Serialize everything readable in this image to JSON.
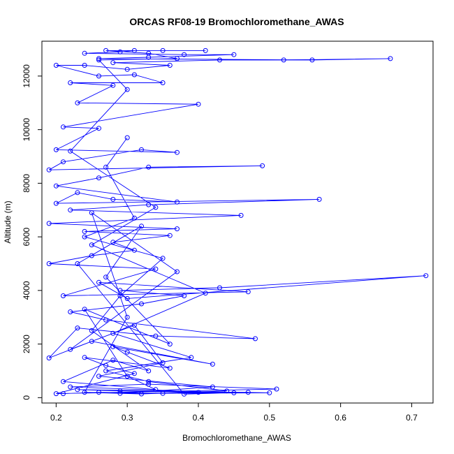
{
  "chart_data": {
    "type": "line",
    "title": "ORCAS RF08-19 Bromochloromethane_AWAS",
    "xlabel": "Bromochloromethane_AWAS",
    "ylabel": "Altitude (m)",
    "xlim": [
      0.18,
      0.73
    ],
    "ylim": [
      -200,
      13300
    ],
    "xticks": [
      0.2,
      0.3,
      0.4,
      0.5,
      0.6,
      0.7
    ],
    "xtick_labels": [
      "0.2",
      "0.3",
      "0.4",
      "0.5",
      "0.6",
      "0.7"
    ],
    "yticks": [
      0,
      2000,
      4000,
      6000,
      8000,
      10000,
      12000
    ],
    "ytick_labels": [
      "0",
      "2000",
      "4000",
      "6000",
      "8000",
      "10000",
      "12000"
    ],
    "grid": false,
    "series": [
      {
        "color": "#0000ff",
        "marker": "open-circle",
        "points": [
          {
            "x": 0.21,
            "y": 150
          },
          {
            "x": 0.26,
            "y": 200
          },
          {
            "x": 0.35,
            "y": 160
          },
          {
            "x": 0.5,
            "y": 180
          },
          {
            "x": 0.23,
            "y": 300
          },
          {
            "x": 0.29,
            "y": 250
          },
          {
            "x": 0.4,
            "y": 200
          },
          {
            "x": 0.45,
            "y": 180
          },
          {
            "x": 0.22,
            "y": 400
          },
          {
            "x": 0.33,
            "y": 500
          },
          {
            "x": 0.51,
            "y": 320
          },
          {
            "x": 0.2,
            "y": 150
          },
          {
            "x": 0.31,
            "y": 900
          },
          {
            "x": 0.27,
            "y": 1200
          },
          {
            "x": 0.24,
            "y": 1500
          },
          {
            "x": 0.36,
            "y": 1100
          },
          {
            "x": 0.3,
            "y": 1700
          },
          {
            "x": 0.28,
            "y": 1900
          },
          {
            "x": 0.42,
            "y": 1250
          },
          {
            "x": 0.25,
            "y": 2100
          },
          {
            "x": 0.19,
            "y": 1480
          },
          {
            "x": 0.23,
            "y": 2600
          },
          {
            "x": 0.34,
            "y": 2300
          },
          {
            "x": 0.48,
            "y": 2200
          },
          {
            "x": 0.27,
            "y": 2900
          },
          {
            "x": 0.22,
            "y": 3200
          },
          {
            "x": 0.32,
            "y": 3500
          },
          {
            "x": 0.38,
            "y": 3800
          },
          {
            "x": 0.29,
            "y": 4000
          },
          {
            "x": 0.43,
            "y": 4100
          },
          {
            "x": 0.72,
            "y": 4550
          },
          {
            "x": 0.3,
            "y": 3700
          },
          {
            "x": 0.26,
            "y": 4300
          },
          {
            "x": 0.47,
            "y": 3950
          },
          {
            "x": 0.21,
            "y": 3800
          },
          {
            "x": 0.34,
            "y": 4800
          },
          {
            "x": 0.19,
            "y": 5000
          },
          {
            "x": 0.25,
            "y": 5300
          },
          {
            "x": 0.31,
            "y": 5500
          },
          {
            "x": 0.28,
            "y": 5800
          },
          {
            "x": 0.36,
            "y": 6050
          },
          {
            "x": 0.24,
            "y": 6200
          },
          {
            "x": 0.37,
            "y": 6300
          },
          {
            "x": 0.19,
            "y": 6500
          },
          {
            "x": 0.46,
            "y": 6800
          },
          {
            "x": 0.22,
            "y": 7000
          },
          {
            "x": 0.33,
            "y": 7200
          },
          {
            "x": 0.57,
            "y": 7400
          },
          {
            "x": 0.2,
            "y": 7250
          },
          {
            "x": 0.23,
            "y": 7650
          },
          {
            "x": 0.28,
            "y": 7400
          },
          {
            "x": 0.37,
            "y": 7300
          },
          {
            "x": 0.2,
            "y": 7900
          },
          {
            "x": 0.26,
            "y": 8200
          },
          {
            "x": 0.33,
            "y": 8600
          },
          {
            "x": 0.49,
            "y": 8650
          },
          {
            "x": 0.19,
            "y": 8500
          },
          {
            "x": 0.21,
            "y": 8800
          },
          {
            "x": 0.32,
            "y": 9250
          },
          {
            "x": 0.37,
            "y": 9150
          },
          {
            "x": 0.2,
            "y": 9250
          },
          {
            "x": 0.26,
            "y": 10050
          },
          {
            "x": 0.21,
            "y": 10100
          },
          {
            "x": 0.4,
            "y": 10950
          },
          {
            "x": 0.23,
            "y": 11000
          },
          {
            "x": 0.28,
            "y": 11650
          },
          {
            "x": 0.22,
            "y": 11750
          },
          {
            "x": 0.35,
            "y": 11750
          },
          {
            "x": 0.31,
            "y": 12050
          },
          {
            "x": 0.26,
            "y": 12000
          },
          {
            "x": 0.2,
            "y": 12400
          },
          {
            "x": 0.24,
            "y": 12400
          },
          {
            "x": 0.3,
            "y": 12250
          },
          {
            "x": 0.36,
            "y": 12400
          },
          {
            "x": 0.28,
            "y": 12500
          },
          {
            "x": 0.43,
            "y": 12600
          },
          {
            "x": 0.52,
            "y": 12600
          },
          {
            "x": 0.67,
            "y": 12650
          },
          {
            "x": 0.56,
            "y": 12600
          },
          {
            "x": 0.26,
            "y": 12650
          },
          {
            "x": 0.33,
            "y": 12700
          },
          {
            "x": 0.45,
            "y": 12800
          },
          {
            "x": 0.38,
            "y": 12800
          },
          {
            "x": 0.24,
            "y": 12850
          },
          {
            "x": 0.29,
            "y": 12900
          },
          {
            "x": 0.31,
            "y": 12950
          },
          {
            "x": 0.35,
            "y": 12950
          },
          {
            "x": 0.41,
            "y": 12950
          },
          {
            "x": 0.27,
            "y": 12950
          },
          {
            "x": 0.33,
            "y": 12850
          },
          {
            "x": 0.37,
            "y": 12650
          },
          {
            "x": 0.26,
            "y": 12600
          },
          {
            "x": 0.3,
            "y": 11500
          },
          {
            "x": 0.22,
            "y": 9200
          },
          {
            "x": 0.34,
            "y": 7100
          },
          {
            "x": 0.25,
            "y": 5700
          },
          {
            "x": 0.41,
            "y": 3900
          },
          {
            "x": 0.28,
            "y": 2400
          },
          {
            "x": 0.39,
            "y": 1500
          },
          {
            "x": 0.27,
            "y": 1000
          },
          {
            "x": 0.33,
            "y": 600
          },
          {
            "x": 0.44,
            "y": 250
          },
          {
            "x": 0.32,
            "y": 140
          },
          {
            "x": 0.24,
            "y": 200
          },
          {
            "x": 0.3,
            "y": 3000
          },
          {
            "x": 0.25,
            "y": 6900
          },
          {
            "x": 0.37,
            "y": 4700
          },
          {
            "x": 0.22,
            "y": 1800
          },
          {
            "x": 0.31,
            "y": 2700
          },
          {
            "x": 0.35,
            "y": 1300
          },
          {
            "x": 0.26,
            "y": 800
          },
          {
            "x": 0.42,
            "y": 400
          },
          {
            "x": 0.29,
            "y": 160
          },
          {
            "x": 0.47,
            "y": 200
          },
          {
            "x": 0.38,
            "y": 130
          },
          {
            "x": 0.23,
            "y": 5000
          },
          {
            "x": 0.32,
            "y": 6400
          },
          {
            "x": 0.27,
            "y": 4500
          },
          {
            "x": 0.36,
            "y": 2000
          },
          {
            "x": 0.24,
            "y": 3300
          },
          {
            "x": 0.3,
            "y": 800
          },
          {
            "x": 0.34,
            "y": 300
          },
          {
            "x": 0.21,
            "y": 600
          },
          {
            "x": 0.28,
            "y": 1400
          },
          {
            "x": 0.33,
            "y": 1000
          },
          {
            "x": 0.25,
            "y": 2500
          },
          {
            "x": 0.29,
            "y": 3800
          },
          {
            "x": 0.35,
            "y": 5200
          },
          {
            "x": 0.24,
            "y": 6000
          },
          {
            "x": 0.31,
            "y": 6700
          },
          {
            "x": 0.27,
            "y": 8600
          },
          {
            "x": 0.3,
            "y": 9700
          }
        ]
      }
    ]
  }
}
